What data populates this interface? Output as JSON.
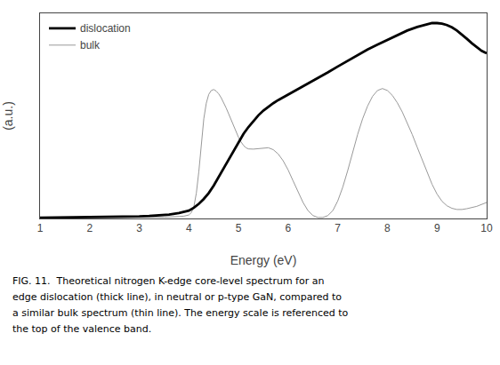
{
  "chart_data": {
    "type": "line",
    "xlabel": "Energy (eV)",
    "ylabel": "(a.u.)",
    "annotations": [
      "FIG. 11.  Theoretical nitrogen K-edge core-level spectrum for an",
      "edge dislocation (thick line), in neutral or p-type GaN, compared to",
      "a similar bulk spectrum (thin line). The energy scale is referenced to",
      "the top of the valence band."
    ],
    "xlim": [
      1,
      10
    ],
    "ylim": [
      0,
      1.05
    ],
    "xticks": [
      1,
      2,
      3,
      4,
      5,
      6,
      7,
      8,
      9,
      10
    ],
    "yticks": [],
    "tick_labels": "x",
    "grid": false,
    "legend": "upper left",
    "series": [
      {
        "name": "bulk",
        "color": "#999999",
        "x": [
          1.0,
          2.0,
          3.0,
          3.5,
          3.8,
          3.9,
          4.0,
          4.05,
          4.1,
          4.15,
          4.2,
          4.25,
          4.3,
          4.35,
          4.4,
          4.45,
          4.5,
          4.55,
          4.6,
          4.65,
          4.7,
          4.75,
          4.8,
          4.85,
          4.9,
          4.95,
          5.0,
          5.05,
          5.1,
          5.15,
          5.2,
          5.3,
          5.4,
          5.5,
          5.6,
          5.7,
          5.8,
          5.9,
          6.0,
          6.1,
          6.2,
          6.3,
          6.4,
          6.5,
          6.6,
          6.7,
          6.8,
          6.9,
          7.0,
          7.1,
          7.2,
          7.3,
          7.4,
          7.5,
          7.6,
          7.7,
          7.8,
          7.9,
          8.0,
          8.1,
          8.2,
          8.3,
          8.4,
          8.5,
          8.6,
          8.7,
          8.8,
          8.9,
          9.0,
          9.1,
          9.2,
          9.3,
          9.4,
          9.5,
          9.6,
          9.8,
          10.0
        ],
        "values": [
          0.002,
          0.003,
          0.005,
          0.007,
          0.01,
          0.012,
          0.018,
          0.03,
          0.06,
          0.13,
          0.24,
          0.38,
          0.51,
          0.59,
          0.635,
          0.655,
          0.66,
          0.652,
          0.638,
          0.618,
          0.594,
          0.566,
          0.536,
          0.504,
          0.472,
          0.442,
          0.415,
          0.392,
          0.374,
          0.362,
          0.356,
          0.355,
          0.358,
          0.362,
          0.362,
          0.352,
          0.33,
          0.295,
          0.248,
          0.192,
          0.135,
          0.082,
          0.04,
          0.015,
          0.005,
          0.005,
          0.015,
          0.04,
          0.09,
          0.16,
          0.245,
          0.34,
          0.43,
          0.51,
          0.575,
          0.625,
          0.655,
          0.665,
          0.655,
          0.63,
          0.592,
          0.545,
          0.49,
          0.43,
          0.365,
          0.3,
          0.235,
          0.175,
          0.125,
          0.088,
          0.065,
          0.052,
          0.046,
          0.046,
          0.05,
          0.062,
          0.082
        ]
      },
      {
        "name": "dislocation",
        "color": "#000000",
        "x": [
          1.0,
          1.5,
          2.0,
          2.5,
          3.0,
          3.2,
          3.4,
          3.6,
          3.8,
          4.0,
          4.1,
          4.2,
          4.3,
          4.4,
          4.5,
          4.6,
          4.7,
          4.8,
          4.9,
          5.0,
          5.1,
          5.2,
          5.3,
          5.4,
          5.5,
          5.6,
          5.7,
          5.8,
          5.9,
          6.0,
          6.2,
          6.4,
          6.6,
          6.8,
          7.0,
          7.2,
          7.4,
          7.6,
          7.8,
          8.0,
          8.2,
          8.4,
          8.6,
          8.8,
          8.9,
          9.0,
          9.1,
          9.2,
          9.3,
          9.4,
          9.5,
          9.6,
          9.7,
          9.8,
          9.9,
          10.0
        ],
        "values": [
          0.004,
          0.005,
          0.006,
          0.008,
          0.011,
          0.013,
          0.016,
          0.02,
          0.028,
          0.04,
          0.055,
          0.075,
          0.1,
          0.13,
          0.168,
          0.212,
          0.258,
          0.305,
          0.35,
          0.393,
          0.433,
          0.468,
          0.5,
          0.528,
          0.552,
          0.572,
          0.59,
          0.606,
          0.62,
          0.635,
          0.662,
          0.69,
          0.718,
          0.748,
          0.778,
          0.808,
          0.838,
          0.865,
          0.89,
          0.915,
          0.94,
          0.962,
          0.98,
          0.995,
          1.0,
          1.0,
          0.997,
          0.99,
          0.978,
          0.962,
          0.942,
          0.92,
          0.897,
          0.876,
          0.858,
          0.845
        ]
      }
    ]
  }
}
